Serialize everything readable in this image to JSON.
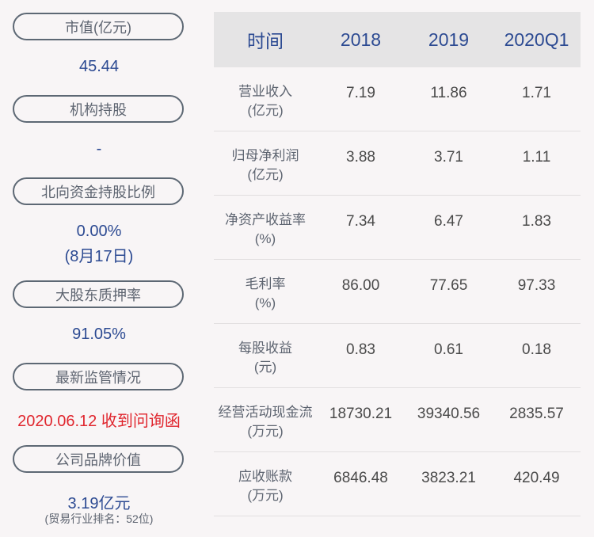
{
  "left_panel": {
    "market_cap": {
      "label": "市值(亿元)",
      "value": "45.44"
    },
    "institutional": {
      "label": "机构持股",
      "value": "-"
    },
    "northbound": {
      "label": "北向资金持股比例",
      "value": "0.00%",
      "date": "(8月17日)"
    },
    "pledge": {
      "label": "大股东质押率",
      "value": "91.05%"
    },
    "regulation": {
      "label": "最新监管情况",
      "value": "2020.06.12 收到问询函"
    },
    "brand": {
      "label": "公司品牌价值",
      "value": "3.19亿元",
      "note": "(贸易行业排名：52位)"
    }
  },
  "table": {
    "headers": [
      "时间",
      "2018",
      "2019",
      "2020Q1"
    ],
    "rows": [
      {
        "label": "营业收入",
        "unit": "(亿元)",
        "values": [
          "7.19",
          "11.86",
          "1.71"
        ]
      },
      {
        "label": "归母净利润",
        "unit": "(亿元)",
        "values": [
          "3.88",
          "3.71",
          "1.11"
        ]
      },
      {
        "label": "净资产收益率",
        "unit": "(%)",
        "values": [
          "7.34",
          "6.47",
          "1.83"
        ]
      },
      {
        "label": "毛利率",
        "unit": "(%)",
        "values": [
          "86.00",
          "77.65",
          "97.33"
        ]
      },
      {
        "label": "每股收益",
        "unit": "(元)",
        "values": [
          "0.83",
          "0.61",
          "0.18"
        ]
      },
      {
        "label": "经营活动现金流",
        "unit": "(万元)",
        "values": [
          "18730.21",
          "39340.56",
          "2835.57"
        ]
      },
      {
        "label": "应收账款",
        "unit": "(万元)",
        "values": [
          "6846.48",
          "3823.21",
          "420.49"
        ]
      }
    ]
  }
}
